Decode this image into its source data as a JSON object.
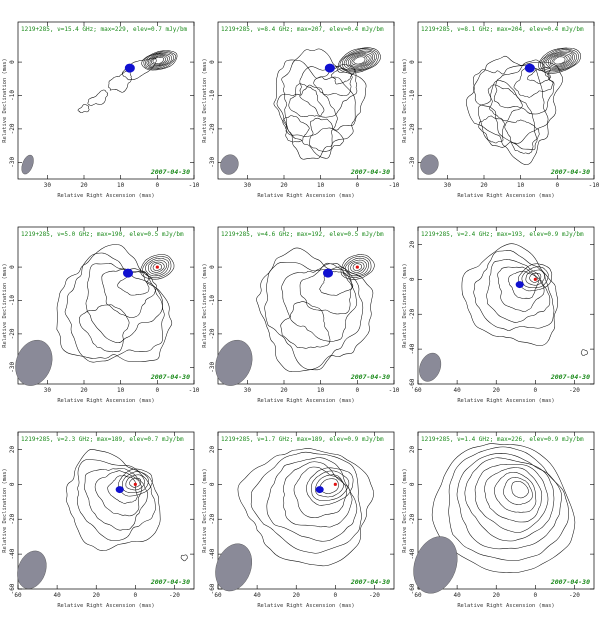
{
  "chart_data": [
    {
      "type": "contour",
      "title": "1219+285, ν=15.4 GHz; max=229, elev=0.7 mJy/bm",
      "date": "2007-04-30",
      "xlabel": "Relative Right Ascension (mas)",
      "ylabel": "Relative Declination (mas)",
      "xlim": [
        38,
        -10
      ],
      "ylim": [
        -35,
        12
      ],
      "xticks": [
        30,
        20,
        10,
        0,
        -10
      ],
      "yticks": [
        0,
        -10,
        -20,
        -30
      ],
      "blue_marker": [
        7.5,
        -1.8
      ],
      "red_marker": null
    },
    {
      "type": "contour",
      "title": "1219+285, ν=8.4 GHz; max=207, elev=0.4 mJy/bm",
      "date": "2007-04-30",
      "xlabel": "Relative Right Ascension (mas)",
      "ylabel": "Relative Declination (mas)",
      "xlim": [
        38,
        -10
      ],
      "ylim": [
        -35,
        12
      ],
      "xticks": [
        30,
        20,
        10,
        0,
        -10
      ],
      "yticks": [
        0,
        -10,
        -20,
        -30
      ],
      "blue_marker": [
        7.5,
        -1.8
      ],
      "red_marker": null
    },
    {
      "type": "contour",
      "title": "1219+285, ν=8.1 GHz; max=204, elev=0.4 mJy/bm",
      "date": "2007-04-30",
      "xlabel": "Relative Right Ascension (mas)",
      "ylabel": "Relative Declination (mas)",
      "xlim": [
        38,
        -10
      ],
      "ylim": [
        -35,
        12
      ],
      "xticks": [
        30,
        20,
        10,
        0,
        -10
      ],
      "yticks": [
        0,
        -10,
        -20,
        -30
      ],
      "blue_marker": [
        7.5,
        -1.8
      ],
      "red_marker": null
    },
    {
      "type": "contour",
      "title": "1219+285, ν=5.0 GHz; max=190, elev=0.5 mJy/bm",
      "date": "2007-04-30",
      "xlabel": "Relative Right Ascension (mas)",
      "ylabel": "Relative Declination (mas)",
      "xlim": [
        38,
        -10
      ],
      "ylim": [
        -35,
        12
      ],
      "xticks": [
        30,
        20,
        10,
        0,
        -10
      ],
      "yticks": [
        0,
        -10,
        -20,
        -30
      ],
      "blue_marker": [
        8,
        -1.8
      ],
      "red_marker": [
        0,
        0
      ]
    },
    {
      "type": "contour",
      "title": "1219+285, ν=4.6 GHz; max=192, elev=0.5 mJy/bm",
      "date": "2007-04-30",
      "xlabel": "Relative Right Ascension (mas)",
      "ylabel": "Relative Declination (mas)",
      "xlim": [
        38,
        -10
      ],
      "ylim": [
        -35,
        12
      ],
      "xticks": [
        30,
        20,
        10,
        0,
        -10
      ],
      "yticks": [
        0,
        -10,
        -20,
        -30
      ],
      "blue_marker": [
        8,
        -1.8
      ],
      "red_marker": [
        0,
        0
      ]
    },
    {
      "type": "contour",
      "title": "1219+285, ν=2.4 GHz; max=193, elev=0.9 mJy/bm",
      "date": "2007-04-30",
      "xlabel": "Relative Right Ascension (mas)",
      "ylabel": "Relative Declination (mas)",
      "xlim": [
        60,
        -30
      ],
      "ylim": [
        -60,
        30
      ],
      "xticks": [
        60,
        40,
        20,
        0,
        -20
      ],
      "yticks": [
        20,
        0,
        -20,
        -40,
        -60
      ],
      "blue_marker": [
        8,
        -3
      ],
      "red_marker": [
        0,
        0
      ]
    },
    {
      "type": "contour",
      "title": "1219+285, ν=2.3 GHz; max=189, elev=0.7 mJy/bm",
      "date": "2007-04-30",
      "xlabel": "Relative Right Ascension (mas)",
      "ylabel": "Relative Declination (mas)",
      "xlim": [
        60,
        -30
      ],
      "ylim": [
        -60,
        30
      ],
      "xticks": [
        60,
        40,
        20,
        0,
        -20
      ],
      "yticks": [
        20,
        0,
        -20,
        -40,
        -60
      ],
      "blue_marker": [
        8,
        -3
      ],
      "red_marker": [
        0,
        0
      ]
    },
    {
      "type": "contour",
      "title": "1219+285, ν=1.7 GHz; max=189, elev=0.9 mJy/bm",
      "date": "2007-04-30",
      "xlabel": "Relative Right Ascension (mas)",
      "ylabel": "Relative Declination (mas)",
      "xlim": [
        60,
        -30
      ],
      "ylim": [
        -60,
        30
      ],
      "xticks": [
        60,
        40,
        20,
        0,
        -20
      ],
      "yticks": [
        20,
        0,
        -20,
        -40,
        -60
      ],
      "blue_marker": [
        8,
        -3
      ],
      "red_marker": [
        0,
        0
      ]
    },
    {
      "type": "contour",
      "title": "1219+285, ν=1.4 GHz; max=226, elev=0.9 mJy/bm",
      "date": "2007-04-30",
      "xlabel": "Relative Right Ascension (mas)",
      "ylabel": "Relative Declination (mas)",
      "xlim": [
        60,
        -30
      ],
      "ylim": [
        -60,
        30
      ],
      "xticks": [
        60,
        40,
        20,
        0,
        -20
      ],
      "yticks": [
        20,
        0,
        -20,
        -40,
        -60
      ],
      "blue_marker": null,
      "red_marker": null
    }
  ],
  "colors": {
    "title": "#1a8a1a",
    "date": "#1a8a1a",
    "contour": "#111111",
    "beam": "#8a8a98",
    "blue": "#1010d0",
    "red": "#e01010"
  }
}
